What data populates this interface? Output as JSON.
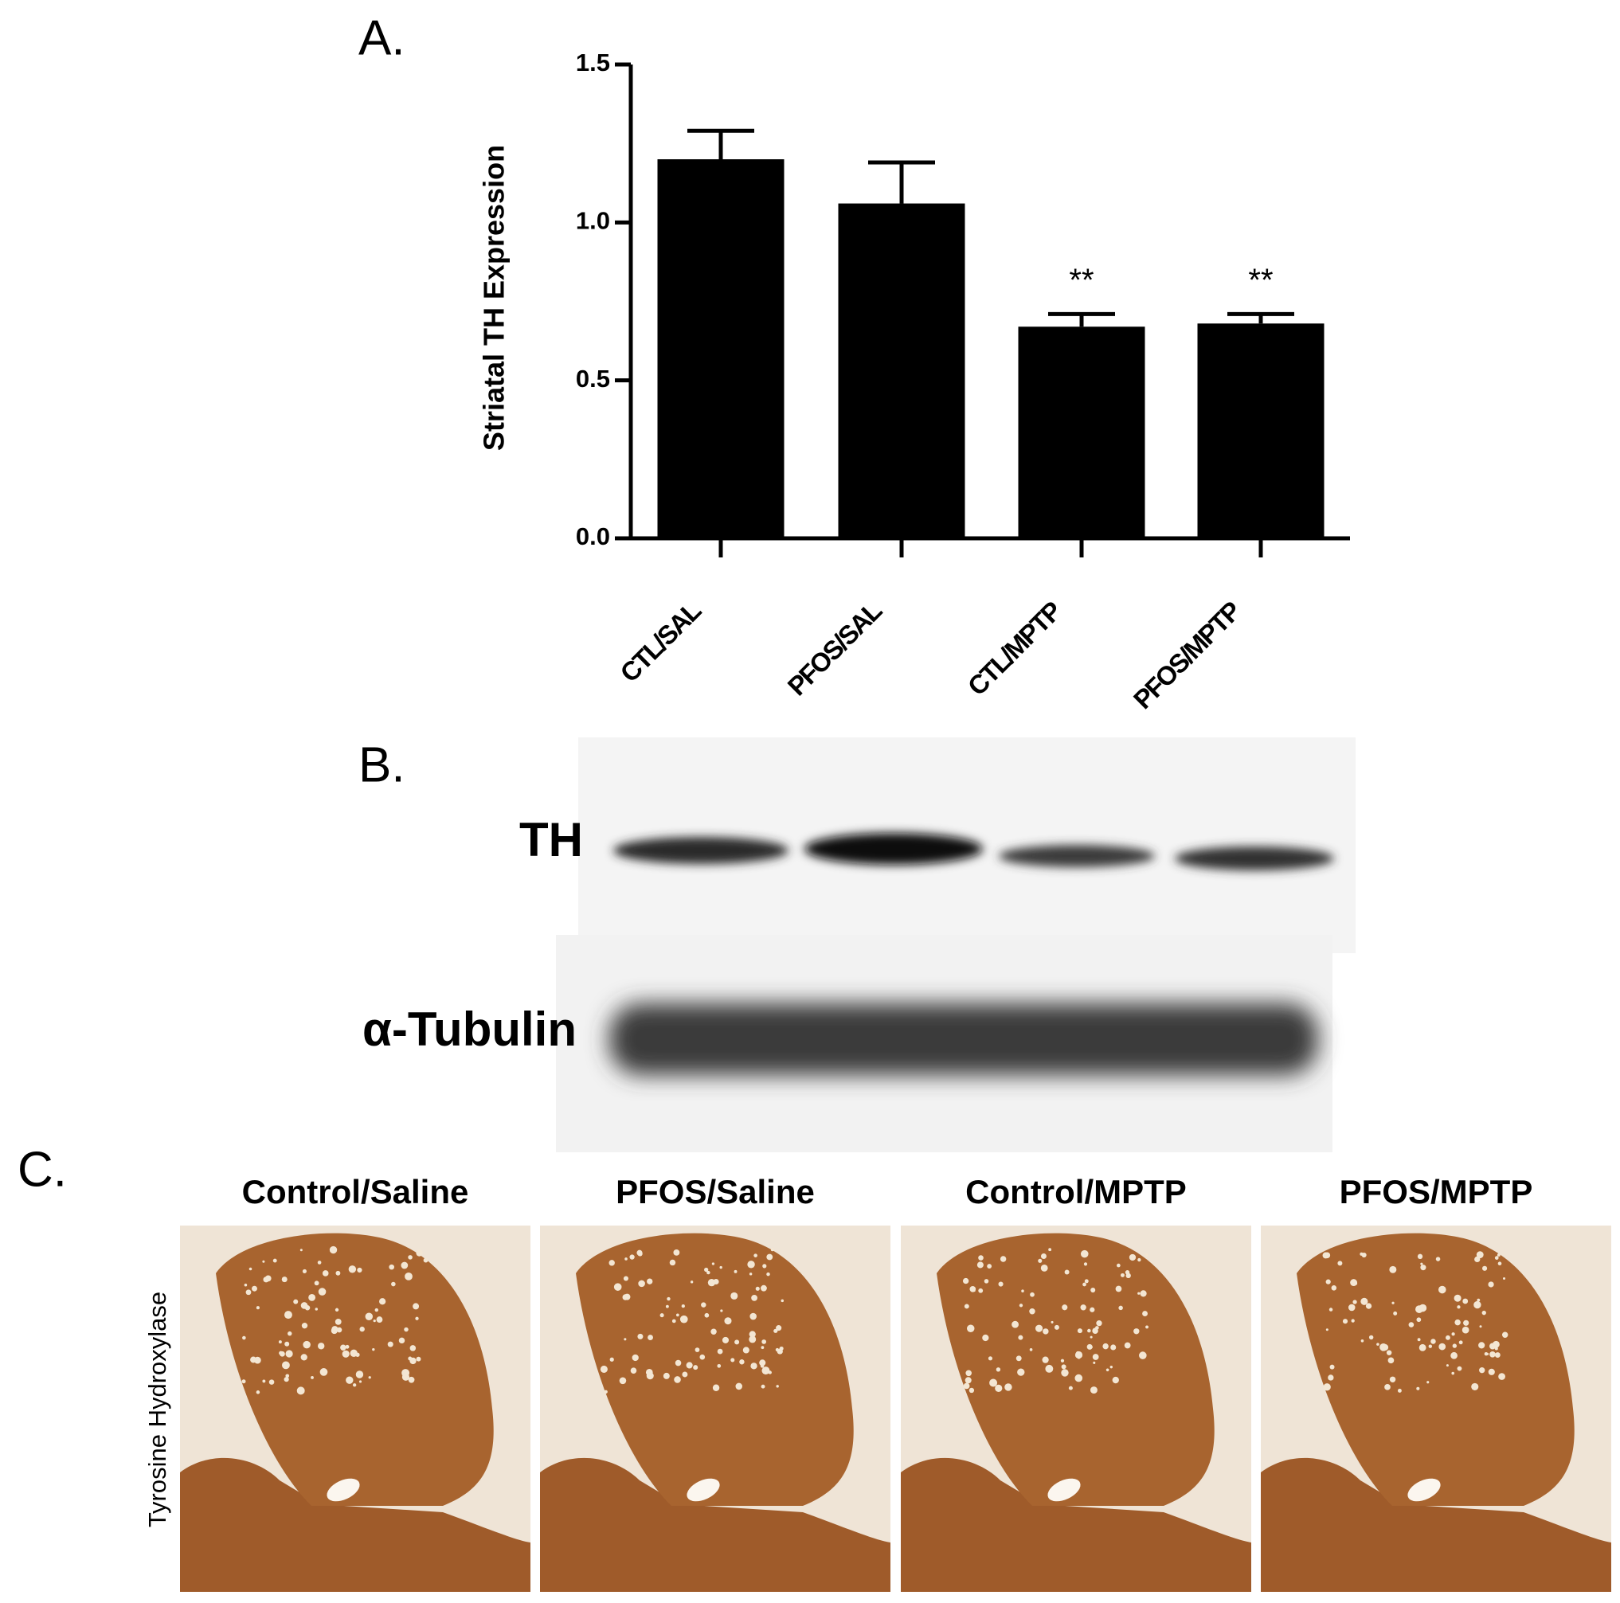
{
  "chart_data": {
    "type": "bar",
    "panel_label": "A.",
    "ylabel": "Striatal TH Expression",
    "categories": [
      "CTL/SAL",
      "PFOS/SAL",
      "CTL/MPTP",
      "PFOS/MPTP"
    ],
    "values": [
      1.2,
      1.06,
      0.67,
      0.68
    ],
    "errors": [
      0.09,
      0.13,
      0.04,
      0.03
    ],
    "significance": [
      null,
      null,
      "**",
      "**"
    ],
    "color": "#000000",
    "ylim": [
      0,
      1.5
    ],
    "yticks": [
      {
        "value": 0,
        "label": "0.0"
      },
      0.5,
      {
        "value": 1,
        "label": "1.0"
      },
      1.5
    ]
  },
  "blot": {
    "panel_label": "B.",
    "rows": [
      "TH",
      "α-Tubulin"
    ]
  },
  "histology": {
    "panel_label": "C.",
    "row_label": "Tyrosine Hydroxylase",
    "columns": [
      "Control/Saline",
      "PFOS/Saline",
      "Control/MPTP",
      "PFOS/MPTP"
    ]
  }
}
